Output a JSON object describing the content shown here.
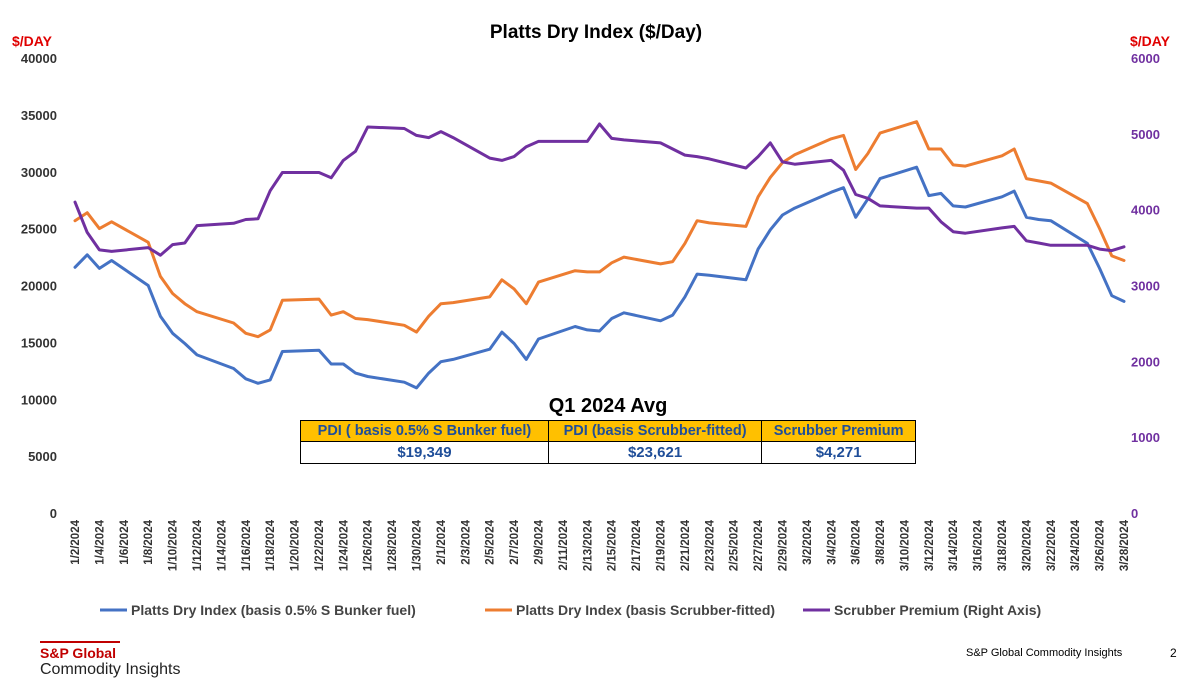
{
  "chart_data": {
    "type": "line",
    "title": "Platts Dry Index ($/Day)",
    "left_unit": "$/DAY",
    "right_unit": "$/DAY",
    "ylim": [
      0,
      40000
    ],
    "y_ticks": [
      "0",
      "5000",
      "10000",
      "15000",
      "20000",
      "25000",
      "30000",
      "35000",
      "40000"
    ],
    "y2lim": [
      0,
      6000
    ],
    "y2_ticks": [
      "0",
      "1000",
      "2000",
      "3000",
      "4000",
      "5000",
      "6000"
    ],
    "x_tick_labels": [
      "1/2/2024",
      "1/4/2024",
      "1/6/2024",
      "1/8/2024",
      "1/10/2024",
      "1/12/2024",
      "1/14/2024",
      "1/16/2024",
      "1/18/2024",
      "1/20/2024",
      "1/22/2024",
      "1/24/2024",
      "1/26/2024",
      "1/28/2024",
      "1/30/2024",
      "2/1/2024",
      "2/3/2024",
      "2/5/2024",
      "2/7/2024",
      "2/9/2024",
      "2/11/2024",
      "2/13/2024",
      "2/15/2024",
      "2/17/2024",
      "2/19/2024",
      "2/21/2024",
      "2/23/2024",
      "2/25/2024",
      "2/27/2024",
      "2/29/2024",
      "3/2/2024",
      "3/4/2024",
      "3/6/2024",
      "3/8/2024",
      "3/10/2024",
      "3/12/2024",
      "3/14/2024",
      "3/16/2024",
      "3/18/2024",
      "3/20/2024",
      "3/22/2024",
      "3/24/2024",
      "3/26/2024",
      "3/28/2024"
    ],
    "x_day_start": 2,
    "x_day_end": 88,
    "legend_position": "bottom",
    "grid": false,
    "series": [
      {
        "name": "Platts Dry Index (basis 0.5% S Bunker fuel)",
        "color": "#4472c4",
        "axis": "left",
        "x_days": [
          2,
          3,
          4,
          5,
          8,
          9,
          10,
          11,
          12,
          15,
          16,
          17,
          18,
          19,
          22,
          23,
          24,
          25,
          26,
          29,
          30,
          31,
          32,
          33,
          36,
          37,
          38,
          39,
          40,
          43,
          44,
          45,
          46,
          47,
          50,
          51,
          52,
          53,
          54,
          57,
          58,
          59,
          60,
          61,
          64,
          65,
          66,
          67,
          68,
          71,
          72,
          73,
          74,
          75,
          78,
          79,
          80,
          81,
          82,
          85,
          86,
          87,
          88
        ],
        "values": [
          21600,
          22700,
          21500,
          22200,
          20000,
          17300,
          15800,
          14900,
          13900,
          12700,
          11800,
          11400,
          11700,
          14200,
          14300,
          13100,
          13100,
          12300,
          12000,
          11500,
          11000,
          12300,
          13300,
          13500,
          14400,
          15900,
          14900,
          13500,
          15300,
          16400,
          16100,
          16000,
          17100,
          17600,
          16900,
          17400,
          19000,
          21000,
          20900,
          20500,
          23200,
          24900,
          26200,
          26800,
          28200,
          28600,
          26000,
          27600,
          29400,
          30400,
          27900,
          28100,
          27000,
          26900,
          27800,
          28300,
          26000,
          25800,
          25700,
          23700,
          21500,
          19100,
          18600
        ]
      },
      {
        "name": "Platts Dry Index (basis Scrubber-fitted)",
        "color": "#ed7d31",
        "axis": "left",
        "x_days": [
          2,
          3,
          4,
          5,
          8,
          9,
          10,
          11,
          12,
          15,
          16,
          17,
          18,
          19,
          22,
          23,
          24,
          25,
          26,
          29,
          30,
          31,
          32,
          33,
          36,
          37,
          38,
          39,
          40,
          43,
          44,
          45,
          46,
          47,
          50,
          51,
          52,
          53,
          54,
          57,
          58,
          59,
          60,
          61,
          64,
          65,
          66,
          67,
          68,
          71,
          72,
          73,
          74,
          75,
          78,
          79,
          80,
          81,
          82,
          85,
          86,
          87,
          88
        ],
        "values": [
          25700,
          26400,
          25000,
          25600,
          23800,
          20800,
          19300,
          18400,
          17700,
          16700,
          15800,
          15500,
          16100,
          18700,
          18800,
          17400,
          17700,
          17100,
          17000,
          16500,
          15900,
          17300,
          18400,
          18500,
          19000,
          20500,
          19700,
          18400,
          20300,
          21300,
          21200,
          21200,
          22000,
          22500,
          21900,
          22100,
          23700,
          25700,
          25500,
          25200,
          27800,
          29500,
          30800,
          31500,
          32900,
          33200,
          30200,
          31600,
          33400,
          34400,
          32000,
          32000,
          30600,
          30500,
          31400,
          32000,
          29400,
          29200,
          29000,
          27200,
          25000,
          22600,
          22200
        ]
      },
      {
        "name": "Scrubber Premium (Right Axis)",
        "color": "#7030a0",
        "axis": "right",
        "x_days": [
          2,
          3,
          4,
          5,
          8,
          9,
          10,
          11,
          12,
          15,
          16,
          17,
          18,
          19,
          22,
          23,
          24,
          25,
          26,
          29,
          30,
          31,
          32,
          33,
          36,
          37,
          38,
          39,
          40,
          43,
          44,
          45,
          46,
          47,
          50,
          51,
          52,
          53,
          54,
          57,
          58,
          59,
          60,
          61,
          64,
          65,
          66,
          67,
          68,
          71,
          72,
          73,
          74,
          75,
          78,
          79,
          80,
          81,
          82,
          85,
          86,
          87,
          88
        ],
        "values": [
          4100,
          3700,
          3470,
          3450,
          3500,
          3400,
          3540,
          3560,
          3790,
          3820,
          3870,
          3880,
          4250,
          4490,
          4490,
          4420,
          4650,
          4770,
          5090,
          5070,
          4980,
          4950,
          5030,
          4950,
          4680,
          4650,
          4700,
          4830,
          4900,
          4900,
          4900,
          5130,
          4940,
          4920,
          4880,
          4800,
          4720,
          4700,
          4670,
          4550,
          4700,
          4880,
          4630,
          4600,
          4650,
          4520,
          4200,
          4150,
          4050,
          4020,
          4020,
          3840,
          3710,
          3690,
          3760,
          3780,
          3590,
          3560,
          3530,
          3530,
          3480,
          3460,
          3510
        ]
      }
    ],
    "summary_table": {
      "title": "Q1 2024 Avg",
      "headers": [
        "PDI ( basis 0.5% S Bunker fuel)",
        "PDI (basis Scrubber-fitted)",
        "Scrubber Premium"
      ],
      "values": [
        "$19,349",
        "$23,621",
        "$4,271"
      ]
    }
  },
  "footer": {
    "logo_line1": "S&P Global",
    "logo_line2": "Commodity Insights",
    "company": "S&P Global Commodity Insights",
    "page_number": "2"
  }
}
